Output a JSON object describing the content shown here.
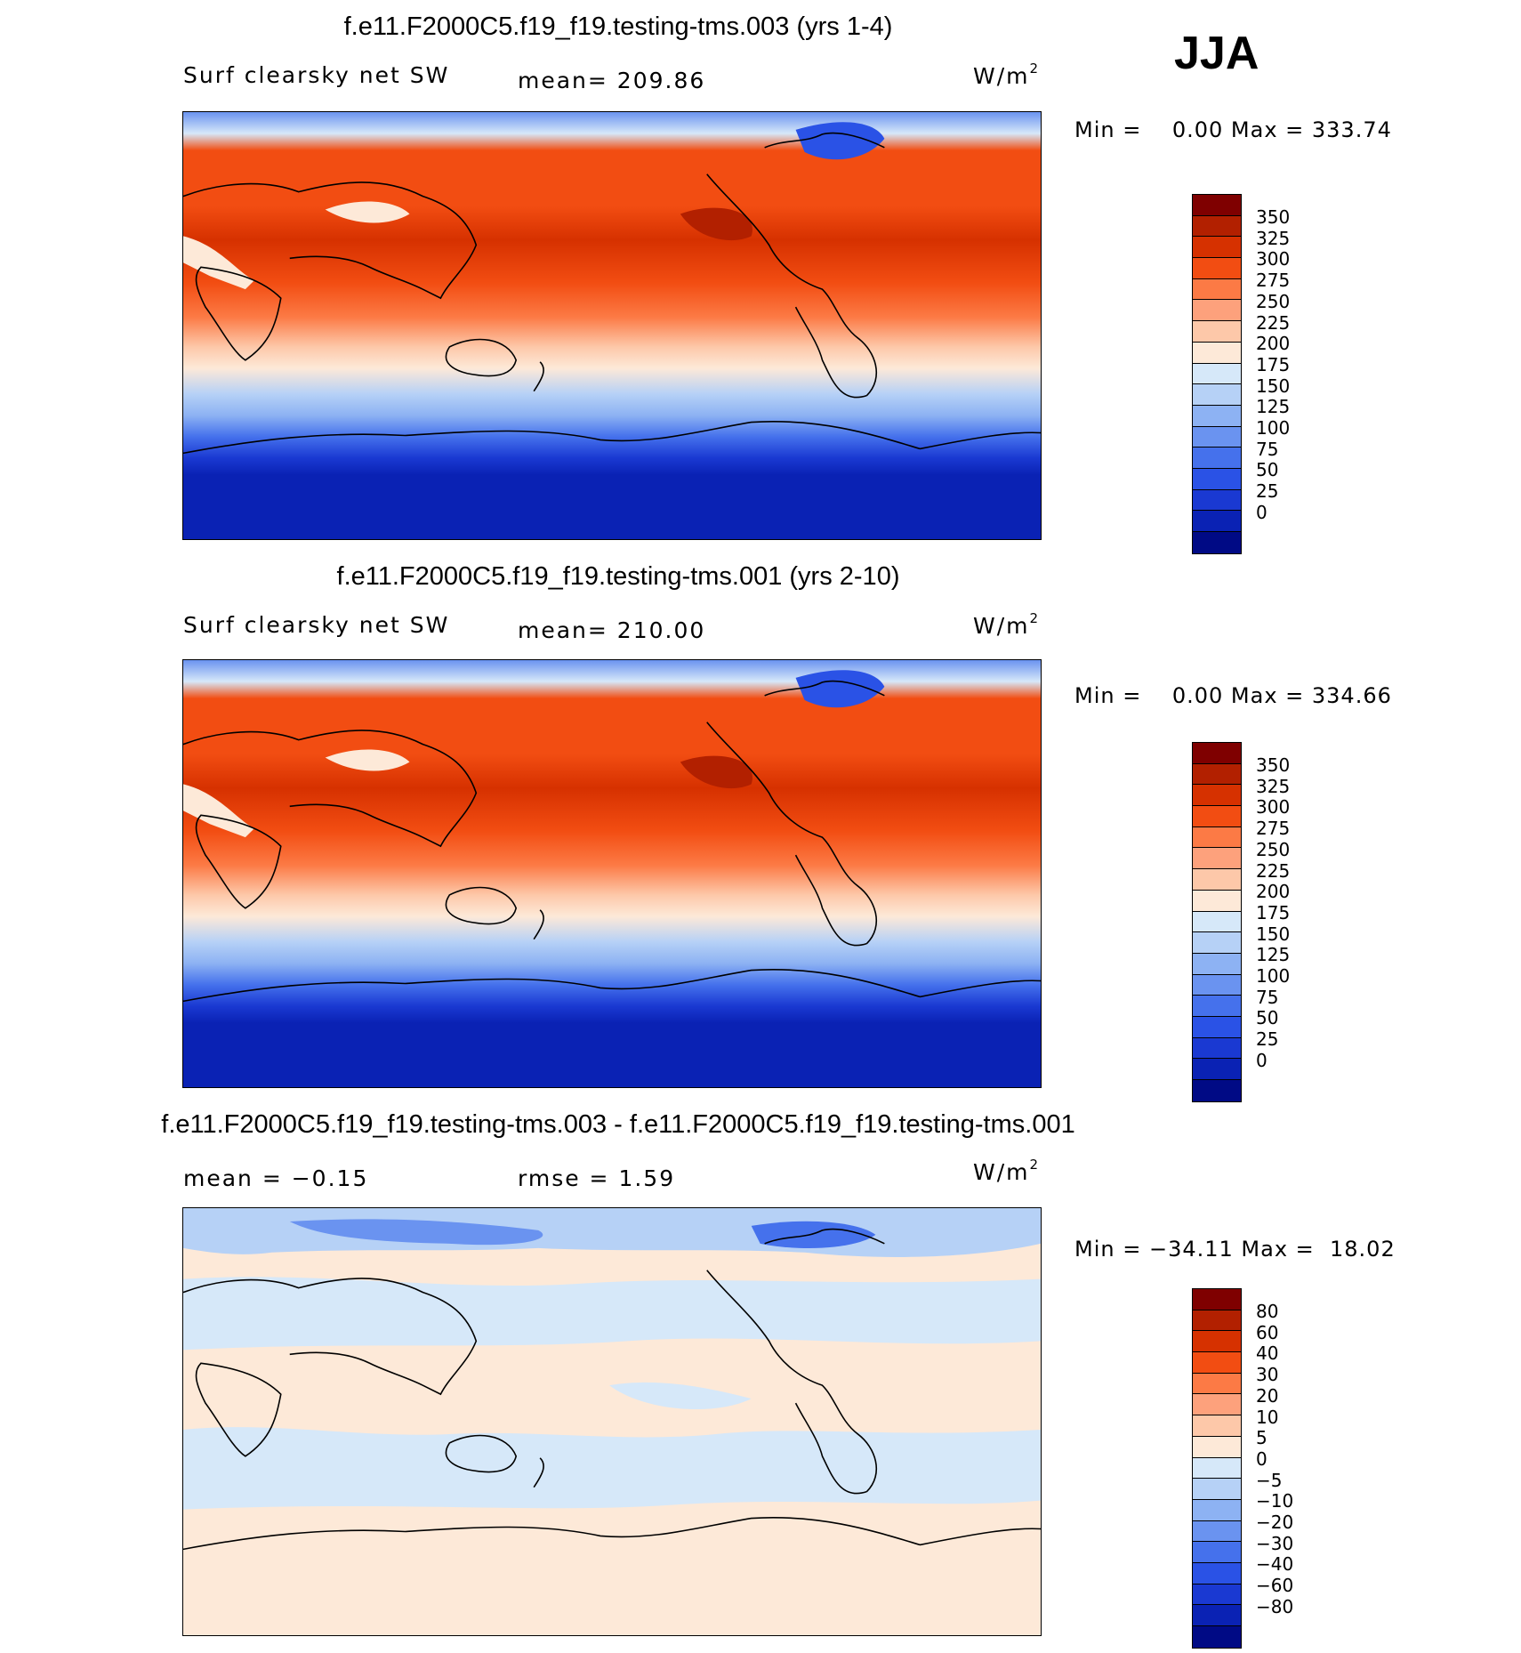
{
  "season": "JJA",
  "abs_colors": [
    "#7f0000",
    "#b22000",
    "#d63100",
    "#f24d12",
    "#fc7a45",
    "#fda17c",
    "#fdc8a9",
    "#fde9d8",
    "#d6e8f9",
    "#b6d1f6",
    "#8db2f3",
    "#6a93f0",
    "#4571ec",
    "#2a52e6",
    "#1a39d2",
    "#0a22b4",
    "#000a85"
  ],
  "diff_colors": [
    "#7f0000",
    "#b22000",
    "#d63100",
    "#f24d12",
    "#fc7a45",
    "#fda17c",
    "#fdc8a9",
    "#fde9d8",
    "#d6e8f9",
    "#b6d1f6",
    "#8db2f3",
    "#6a93f0",
    "#4571ec",
    "#2a52e6",
    "#1a39d2",
    "#0a22b4",
    "#000a85"
  ],
  "abs_levels": [
    "350",
    "325",
    "300",
    "275",
    "250",
    "225",
    "200",
    "175",
    "150",
    "125",
    "100",
    "75",
    "50",
    "25",
    "0"
  ],
  "diff_levels": [
    "80",
    "60",
    "40",
    "30",
    "20",
    "10",
    "5",
    "0",
    "−5",
    "−10",
    "−20",
    "−30",
    "−40",
    "−60",
    "−80"
  ],
  "panels": [
    {
      "title": "f.e11.F2000C5.f19_f19.testing-tms.003 (yrs 1-4)",
      "left_label": "Surf clearsky net SW",
      "center_label": "mean= 209.86",
      "units": "W/m",
      "units_sup": "2",
      "min_max": "Min =    0.00 Max = 333.74"
    },
    {
      "title": "f.e11.F2000C5.f19_f19.testing-tms.001 (yrs 2-10)",
      "left_label": "Surf clearsky net SW",
      "center_label": "mean= 210.00",
      "units": "W/m",
      "units_sup": "2",
      "min_max": "Min =    0.00 Max = 334.66"
    },
    {
      "title": "f.e11.F2000C5.f19_f19.testing-tms.003 - f.e11.F2000C5.f19_f19.testing-tms.001",
      "left_label": "mean =  −0.15",
      "center_label": "rmse =   1.59",
      "units": "W/m",
      "units_sup": "2",
      "min_max": "Min = −34.11 Max =  18.02"
    }
  ]
}
